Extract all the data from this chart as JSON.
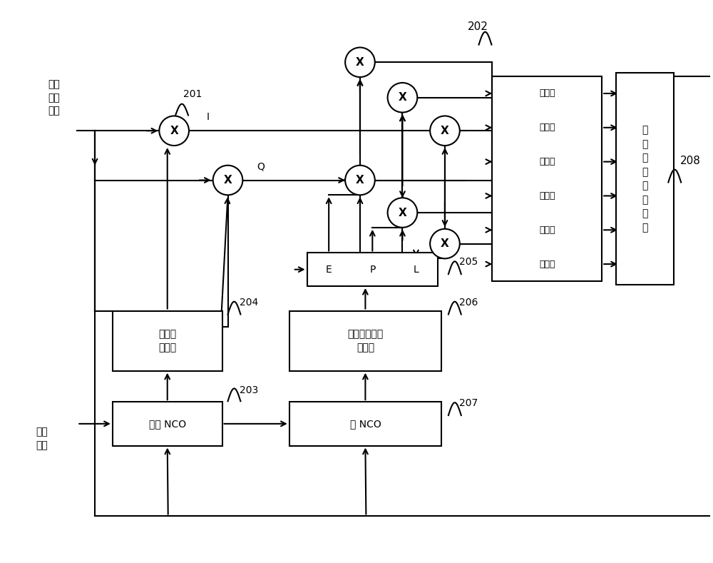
{
  "bg_color": "#ffffff",
  "line_color": "#000000",
  "text_color": "#000000",
  "fig_width": 10.0,
  "fig_height": 7.89,
  "labels": {
    "digital_signal": "数字\n中频\n信号",
    "sampling_clock": "采样\n时钟",
    "label_I": "I",
    "label_Q": "Q",
    "ref_201": "201",
    "ref_202": "202",
    "ref_203": "203",
    "ref_204": "204",
    "ref_205": "205",
    "ref_206": "206",
    "ref_207": "207",
    "ref_208": "208",
    "block_sine": "正弦余\n弦映射",
    "block_carrier_nco": "载波 NCO",
    "block_code_nco": "码 NCO",
    "block_duty_code": "占空比可调码\n产生器",
    "block_recv": "接\n收\n环\n路\n处\n理\n模\n块",
    "label_E": "E",
    "label_P": "P",
    "label_L": "L",
    "acc_label": "累加器"
  }
}
